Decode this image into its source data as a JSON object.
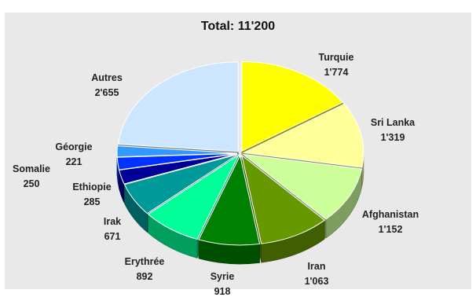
{
  "chart_data": {
    "type": "pie",
    "title": "Total: 11'200",
    "categories": [
      "Turquie",
      "Sri Lanka",
      "Afghanistan",
      "Iran",
      "Syrie",
      "Erythrée",
      "Irak",
      "Ethiopie",
      "Somalie",
      "Géorgie",
      "Autres"
    ],
    "values": [
      1774,
      1319,
      1152,
      1063,
      918,
      892,
      671,
      285,
      250,
      221,
      2655
    ],
    "value_labels": [
      "1'774",
      "1'319",
      "1'152",
      "1'063",
      "918",
      "892",
      "671",
      "285",
      "250",
      "221",
      "2'655"
    ],
    "colors": [
      "#ffff00",
      "#ffff99",
      "#ccff99",
      "#669900",
      "#008000",
      "#00ff99",
      "#009999",
      "#000099",
      "#0033ff",
      "#3399ff",
      "#cce6ff"
    ],
    "style": "3d-exploded-pie"
  }
}
